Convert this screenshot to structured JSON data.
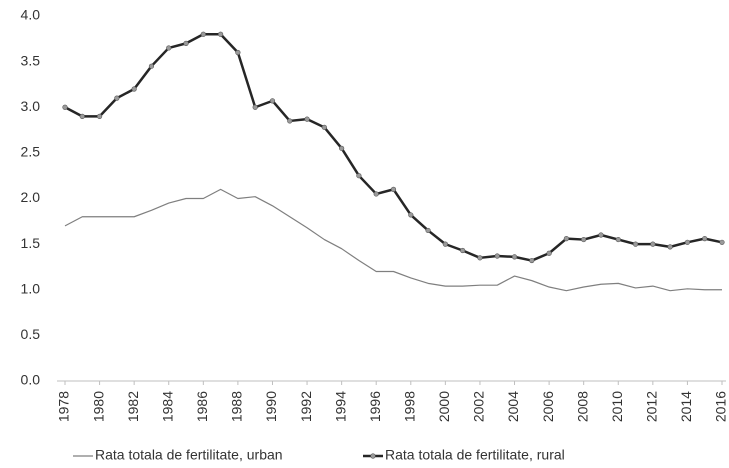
{
  "chart_data": {
    "type": "line",
    "x": [
      1978,
      1979,
      1980,
      1981,
      1982,
      1983,
      1984,
      1985,
      1986,
      1987,
      1988,
      1989,
      1990,
      1991,
      1992,
      1993,
      1994,
      1995,
      1996,
      1997,
      1998,
      1999,
      2000,
      2001,
      2002,
      2003,
      2004,
      2005,
      2006,
      2007,
      2008,
      2009,
      2010,
      2011,
      2012,
      2013,
      2014,
      2015,
      2016
    ],
    "xlim": [
      1978,
      2016
    ],
    "xticks": [
      1978,
      1980,
      1982,
      1984,
      1986,
      1988,
      1990,
      1992,
      1994,
      1996,
      1998,
      2000,
      2002,
      2004,
      2006,
      2008,
      2010,
      2012,
      2014,
      2016
    ],
    "ylim": [
      0,
      4
    ],
    "yticks": [
      {
        "value": 0,
        "label": "0.0"
      },
      0.5,
      {
        "value": 1,
        "label": "1.0"
      },
      1.5,
      {
        "value": 2,
        "label": "2.0"
      },
      2.5,
      {
        "value": 3,
        "label": "3.0"
      },
      3.5,
      {
        "value": 4,
        "label": "4.0"
      }
    ],
    "grid": false,
    "legend": "bottom",
    "series": [
      {
        "name": "Rata totala de fertilitate, urban",
        "color": "#7f7f7f",
        "values": [
          1.7,
          1.8,
          1.8,
          1.8,
          1.8,
          1.87,
          1.95,
          2.0,
          2.0,
          2.1,
          2.0,
          2.02,
          1.92,
          1.8,
          1.68,
          1.55,
          1.45,
          1.32,
          1.2,
          1.2,
          1.13,
          1.07,
          1.04,
          1.04,
          1.05,
          1.05,
          1.15,
          1.1,
          1.03,
          0.99,
          1.03,
          1.06,
          1.07,
          1.02,
          1.04,
          0.99,
          1.01,
          1.0,
          1.0
        ]
      },
      {
        "name": "Rata totala de fertilitate, rural",
        "color": "#262626",
        "values": [
          3.0,
          2.9,
          2.9,
          3.1,
          3.2,
          3.45,
          3.65,
          3.7,
          3.8,
          3.8,
          3.6,
          3.0,
          3.07,
          2.85,
          2.87,
          2.78,
          2.55,
          2.25,
          2.05,
          2.1,
          1.82,
          1.65,
          1.5,
          1.43,
          1.35,
          1.37,
          1.36,
          1.32,
          1.4,
          1.56,
          1.55,
          1.6,
          1.55,
          1.5,
          1.5,
          1.47,
          1.52,
          1.56,
          1.52
        ]
      }
    ]
  }
}
